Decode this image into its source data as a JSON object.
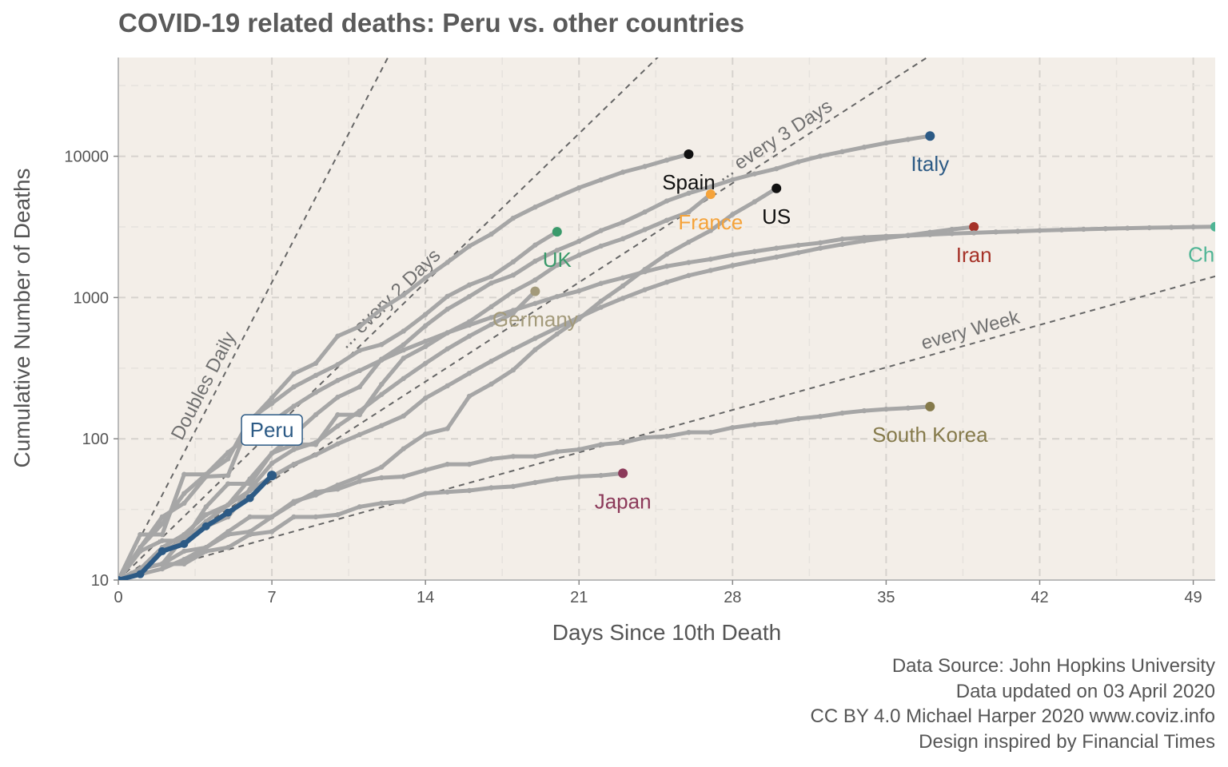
{
  "chart_data": {
    "type": "line",
    "title": "COVID-19 related deaths: Peru vs. other countries",
    "xlabel": "Days Since 10th Death",
    "ylabel": "Cumulative Number of Deaths",
    "y_scale": "log",
    "xlim": [
      0,
      50
    ],
    "ylim": [
      10,
      50000
    ],
    "x_ticks": [
      0,
      7,
      14,
      21,
      28,
      35,
      42,
      49
    ],
    "y_ticks": [
      10,
      100,
      1000,
      10000
    ],
    "grid": true,
    "background_color": "#f3eee8",
    "highlight_color": "#2c5a85",
    "background_series_color": "#a6a6a6",
    "reference_lines": [
      {
        "label": "Doubles Daily",
        "doubling_days": 1
      },
      {
        "label": "... every 2 Days",
        "doubling_days": 2
      },
      {
        "label": "... every 3 Days",
        "doubling_days": 3
      },
      {
        "label": "every  Week",
        "doubling_days": 7
      }
    ],
    "series": [
      {
        "name": "Peru",
        "highlight": true,
        "color": "#2c5a85",
        "x": [
          0,
          1,
          2,
          3,
          4,
          5,
          6,
          7
        ],
        "y": [
          10,
          11,
          16,
          18,
          24,
          30,
          38,
          55
        ]
      },
      {
        "name": "Italy",
        "color": "#2c5a85",
        "x": [
          0,
          1,
          2,
          3,
          4,
          5,
          6,
          7,
          8,
          9,
          10,
          11,
          12,
          13,
          14,
          15,
          16,
          17,
          18,
          19,
          20,
          21,
          22,
          23,
          24,
          25,
          26,
          27,
          28,
          29,
          30,
          31,
          32,
          33,
          34,
          35,
          36,
          37
        ],
        "y": [
          10,
          12,
          17,
          21,
          29,
          34,
          52,
          79,
          107,
          148,
          197,
          233,
          366,
          463,
          631,
          827,
          1016,
          1266,
          1441,
          1809,
          2158,
          2503,
          2978,
          3405,
          4032,
          4825,
          5476,
          6077,
          6820,
          7503,
          8165,
          9134,
          10023,
          10779,
          11591,
          12428,
          13155,
          13915
        ]
      },
      {
        "name": "Spain",
        "color": "#111111",
        "x": [
          0,
          1,
          2,
          3,
          4,
          5,
          6,
          7,
          8,
          9,
          10,
          11,
          12,
          13,
          14,
          15,
          16,
          17,
          18,
          19,
          20,
          21,
          22,
          23,
          24,
          25,
          26
        ],
        "y": [
          10,
          17,
          28,
          35,
          54,
          55,
          133,
          195,
          289,
          342,
          533,
          623,
          830,
          1043,
          1375,
          1772,
          2311,
          2808,
          3647,
          4365,
          5138,
          5982,
          6803,
          7716,
          8464,
          9387,
          10348
        ]
      },
      {
        "name": "France",
        "color": "#f5a33a",
        "x": [
          0,
          1,
          2,
          3,
          4,
          5,
          6,
          7,
          8,
          9,
          10,
          11,
          12,
          13,
          14,
          15,
          16,
          17,
          18,
          19,
          20,
          21,
          22,
          23,
          24,
          25,
          26,
          27
        ],
        "y": [
          10,
          16,
          19,
          19,
          33,
          48,
          48,
          79,
          91,
          91,
          148,
          148,
          243,
          372,
          450,
          562,
          674,
          860,
          1100,
          1331,
          1696,
          1995,
          2314,
          2606,
          3024,
          3523,
          4032,
          5387
        ]
      },
      {
        "name": "US",
        "color": "#111111",
        "x": [
          0,
          1,
          2,
          3,
          4,
          5,
          6,
          7,
          8,
          9,
          10,
          11,
          12,
          13,
          14,
          15,
          16,
          17,
          18,
          19,
          20,
          21,
          22,
          23,
          24,
          25,
          26,
          27,
          28,
          29,
          30
        ],
        "y": [
          10,
          11,
          12,
          14,
          17,
          21,
          22,
          28,
          36,
          40,
          47,
          54,
          63,
          85,
          108,
          118,
          200,
          244,
          307,
          427,
          552,
          706,
          942,
          1209,
          1581,
          2026,
          2467,
          2978,
          3873,
          4757,
          5926
        ]
      },
      {
        "name": "UK",
        "color": "#3a9a6b",
        "x": [
          0,
          1,
          2,
          3,
          4,
          5,
          6,
          7,
          8,
          9,
          10,
          11,
          12,
          13,
          14,
          15,
          16,
          17,
          18,
          19,
          20
        ],
        "y": [
          10,
          21,
          21,
          56,
          56,
          72,
          138,
          178,
          233,
          281,
          335,
          422,
          465,
          578,
          759,
          1019,
          1228,
          1408,
          1789,
          2352,
          2921
        ]
      },
      {
        "name": "Germany",
        "color": "#a39a7a",
        "x": [
          0,
          1,
          2,
          3,
          4,
          5,
          6,
          7,
          8,
          9,
          10,
          11,
          12,
          13,
          14,
          15,
          16,
          17,
          18,
          19
        ],
        "y": [
          10,
          12,
          13,
          20,
          24,
          28,
          44,
          67,
          84,
          94,
          123,
          157,
          206,
          267,
          342,
          433,
          533,
          645,
          775,
          1107
        ]
      },
      {
        "name": "Iran",
        "color": "#a63228",
        "x": [
          0,
          1,
          2,
          3,
          4,
          5,
          6,
          7,
          8,
          9,
          10,
          11,
          12,
          13,
          14,
          15,
          16,
          17,
          18,
          19,
          20,
          21,
          22,
          23,
          24,
          25,
          26,
          27,
          28,
          29,
          30,
          31,
          32,
          33,
          34,
          35,
          36,
          37,
          38,
          39
        ],
        "y": [
          10,
          12,
          16,
          19,
          26,
          34,
          43,
          54,
          66,
          77,
          92,
          107,
          124,
          145,
          194,
          237,
          291,
          354,
          429,
          514,
          611,
          724,
          853,
          988,
          1135,
          1284,
          1433,
          1556,
          1685,
          1812,
          1934,
          2077,
          2234,
          2378,
          2517,
          2640,
          2757,
          2898,
          3036,
          3160
        ]
      },
      {
        "name": "China",
        "color": "#4fb595",
        "x": [
          0,
          1,
          2,
          3,
          4,
          5,
          6,
          7,
          8,
          9,
          10,
          11,
          12,
          13,
          14,
          15,
          16,
          17,
          18,
          19,
          20,
          21,
          22,
          23,
          24,
          25,
          26,
          27,
          28,
          29,
          30,
          31,
          32,
          33,
          34,
          35,
          36,
          37,
          38,
          39,
          40,
          41,
          42,
          43,
          44,
          45,
          46,
          47,
          48,
          49,
          50
        ],
        "y": [
          10,
          17,
          25,
          41,
          56,
          80,
          106,
          132,
          170,
          213,
          259,
          304,
          361,
          425,
          490,
          563,
          638,
          722,
          811,
          908,
          1016,
          1113,
          1259,
          1380,
          1523,
          1665,
          1770,
          1868,
          2004,
          2118,
          2236,
          2345,
          2442,
          2592,
          2663,
          2715,
          2744,
          2788,
          2835,
          2870,
          2912,
          2943,
          2981,
          3013,
          3042,
          3070,
          3097,
          3119,
          3136,
          3158,
          3173
        ]
      },
      {
        "name": "South Korea",
        "color": "#857a4b",
        "x": [
          0,
          1,
          2,
          3,
          4,
          5,
          6,
          7,
          8,
          9,
          10,
          11,
          12,
          13,
          14,
          15,
          16,
          17,
          18,
          19,
          20,
          21,
          22,
          23,
          24,
          25,
          26,
          27,
          28,
          29,
          30,
          31,
          32,
          33,
          34,
          35,
          36,
          37
        ],
        "y": [
          10,
          12,
          13,
          16,
          17,
          22,
          28,
          28,
          35,
          42,
          44,
          50,
          53,
          54,
          60,
          66,
          66,
          72,
          75,
          75,
          81,
          84,
          91,
          94,
          102,
          104,
          111,
          111,
          120,
          126,
          131,
          139,
          144,
          152,
          158,
          162,
          165,
          169
        ]
      },
      {
        "name": "Japan",
        "color": "#8c3a5a",
        "x": [
          0,
          1,
          2,
          3,
          4,
          5,
          6,
          7,
          8,
          9,
          10,
          11,
          12,
          13,
          14,
          15,
          16,
          17,
          18,
          19,
          20,
          21,
          22,
          23
        ],
        "y": [
          10,
          12,
          13,
          13,
          16,
          17,
          21,
          22,
          28,
          28,
          29,
          33,
          35,
          36,
          41,
          42,
          43,
          45,
          46,
          49,
          52,
          54,
          55,
          57
        ]
      }
    ],
    "labels": [
      {
        "text": "Peru",
        "series": "Peru",
        "boxed": true
      },
      {
        "text": "Italy",
        "series": "Italy"
      },
      {
        "text": "Spain",
        "series": "Spain"
      },
      {
        "text": "France",
        "series": "France"
      },
      {
        "text": "US",
        "series": "US"
      },
      {
        "text": "UK",
        "series": "UK"
      },
      {
        "text": "Germany",
        "series": "Germany"
      },
      {
        "text": "Iran",
        "series": "Iran"
      },
      {
        "text": "China",
        "series": "China"
      },
      {
        "text": "South Korea",
        "series": "South Korea"
      },
      {
        "text": "Japan",
        "series": "Japan"
      }
    ]
  },
  "caption": [
    "Data Source: John Hopkins University",
    "Data updated on 03 April 2020",
    "CC BY 4.0 Michael Harper 2020 www.coviz.info",
    "Design inspired by Financial Times"
  ]
}
